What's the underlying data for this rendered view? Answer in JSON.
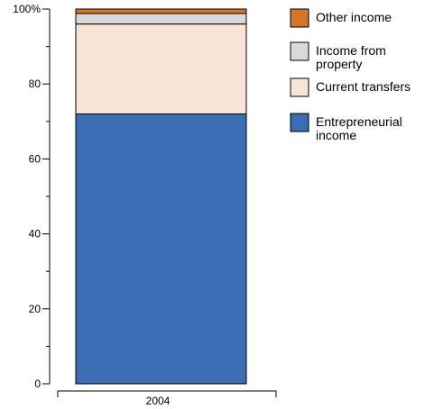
{
  "chart_data": {
    "type": "bar",
    "stacked": true,
    "categories": [
      "2004"
    ],
    "y_tick_labels": [
      "0",
      "20",
      "40",
      "60",
      "80",
      "100%"
    ],
    "y_ticks": [
      0,
      20,
      40,
      60,
      80,
      100
    ],
    "ylim": [
      0,
      100
    ],
    "grid": false,
    "legend_position": "right",
    "series": [
      {
        "name": "Entrepreneurial income",
        "values": [
          72
        ],
        "color": "#3b6db5"
      },
      {
        "name": "Current transfers",
        "values": [
          24
        ],
        "color": "#f6e5d6"
      },
      {
        "name": "Income from property",
        "values": [
          2.8
        ],
        "color": "#d9d9d9"
      },
      {
        "name": "Other income",
        "values": [
          1.2
        ],
        "color": "#d4762a"
      }
    ],
    "legend": [
      {
        "lines": [
          "Other income"
        ],
        "color": "#d4762a"
      },
      {
        "lines": [
          "Income from",
          "property"
        ],
        "color": "#d9d9d9"
      },
      {
        "lines": [
          "Current transfers"
        ],
        "color": "#f6e5d6"
      },
      {
        "lines": [
          "Entrepreneurial",
          "income"
        ],
        "color": "#3b6db5"
      }
    ]
  }
}
